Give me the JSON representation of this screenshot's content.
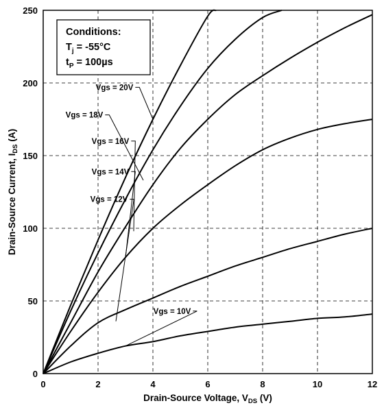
{
  "chart_data": {
    "type": "line",
    "xlabel": {
      "main": "Drain-Source Voltage, V",
      "sub": "DS",
      "unit": " (V)"
    },
    "ylabel": {
      "main": "Drain-Source Current, I",
      "sub": "DS",
      "unit": " (A)"
    },
    "xlim": [
      0,
      12
    ],
    "ylim": [
      0,
      250
    ],
    "x_ticks": [
      "0",
      "2",
      "4",
      "6",
      "8",
      "10",
      "12"
    ],
    "y_ticks": [
      "0",
      "50",
      "100",
      "150",
      "200",
      "250"
    ],
    "grid": "dashed",
    "conditions": {
      "heading": "Conditions:",
      "line1": {
        "main": "T",
        "sub": "j",
        "rest": " = -55°C"
      },
      "line2": {
        "main": "t",
        "sub": "P",
        "rest": " = 100µs"
      }
    },
    "series": [
      {
        "name": "Vgs = 20V",
        "x": [
          0,
          1,
          2,
          3,
          4,
          5,
          6,
          6.3
        ],
        "y": [
          0,
          47,
          92,
          135,
          175,
          212,
          246,
          250
        ]
      },
      {
        "name": "Vgs = 18V",
        "x": [
          0,
          1,
          2,
          3,
          4,
          5,
          6,
          7,
          8,
          8.7
        ],
        "y": [
          0,
          43,
          83,
          120,
          154,
          184,
          210,
          230,
          245,
          250
        ]
      },
      {
        "name": "Vgs = 16V",
        "x": [
          0,
          1,
          2,
          3,
          4,
          5,
          6,
          7,
          8,
          9,
          10,
          11,
          12
        ],
        "y": [
          0,
          35,
          70,
          101,
          130,
          155,
          175,
          192,
          205,
          217,
          228,
          238,
          247
        ]
      },
      {
        "name": "Vgs = 14V",
        "x": [
          0,
          1,
          2,
          3,
          4,
          5,
          6,
          7,
          8,
          9,
          10,
          11,
          12
        ],
        "y": [
          0,
          29,
          56,
          80,
          100,
          116,
          130,
          143,
          154,
          162,
          168,
          172,
          175
        ]
      },
      {
        "name": "Vgs = 12V",
        "x": [
          0,
          1,
          2,
          3,
          4,
          5,
          6,
          7,
          8,
          9,
          10,
          11,
          12
        ],
        "y": [
          0,
          19,
          35,
          44,
          52,
          60,
          67,
          74,
          80,
          86,
          91,
          96,
          100
        ]
      },
      {
        "name": "Vgs = 10V",
        "x": [
          0,
          1,
          2,
          3,
          4,
          5,
          6,
          7,
          8,
          9,
          10,
          11,
          12
        ],
        "y": [
          0,
          8,
          14,
          19,
          22,
          26,
          29,
          32,
          34,
          36,
          38,
          39,
          41
        ]
      }
    ],
    "label_leaders": [
      {
        "series": "Vgs = 20V",
        "label_x": 2.6,
        "label_y": 197,
        "point_x": 4.0,
        "point_y": 175
      },
      {
        "series": "Vgs = 18V",
        "label_x": 1.5,
        "label_y": 178,
        "point_x": 3.65,
        "point_y": 133
      },
      {
        "series": "Vgs = 16V",
        "label_x": 2.45,
        "label_y": 160,
        "point_x": 3.3,
        "point_y": 98
      },
      {
        "series": "Vgs = 14V",
        "label_x": 2.45,
        "label_y": 139,
        "point_x": 3.0,
        "point_y": 80
      },
      {
        "series": "Vgs = 12V",
        "label_x": 2.4,
        "label_y": 120,
        "point_x": 2.65,
        "point_y": 36
      },
      {
        "series": "Vgs = 10V",
        "label_x": 4.7,
        "label_y": 43,
        "point_x": 3.0,
        "point_y": 19
      }
    ]
  }
}
